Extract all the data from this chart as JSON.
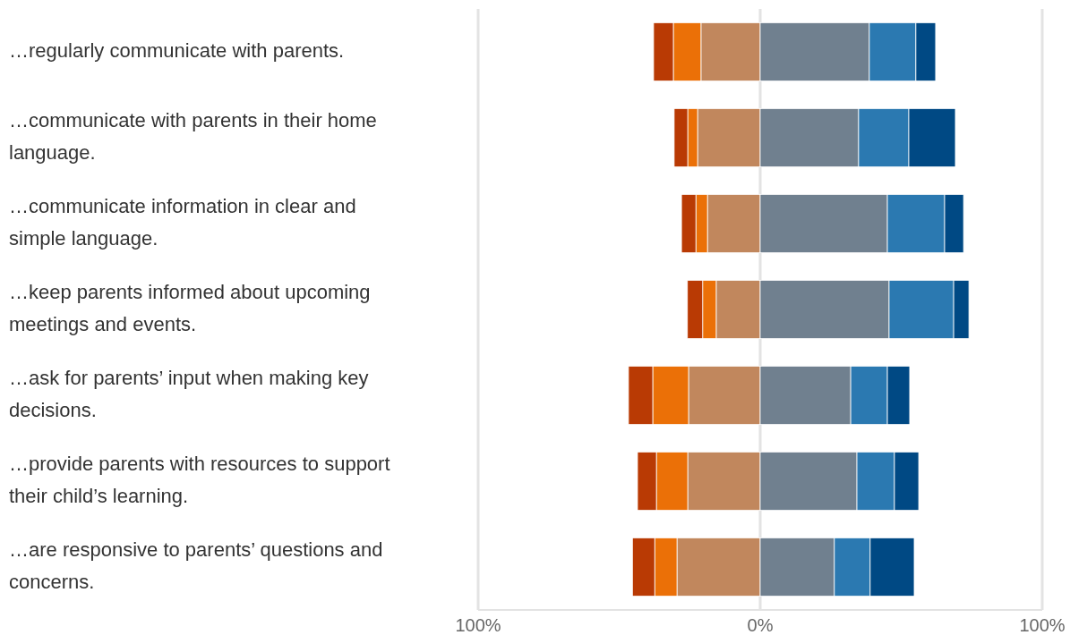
{
  "chart_data": {
    "type": "bar",
    "orientation": "horizontal",
    "stacked": true,
    "grid": "x",
    "categories": [
      "…regularly communicate with parents.",
      "…communicate with parents in their home language.",
      "…communicate information in clear and simple language.",
      "…keep parents informed about upcoming meetings and events.",
      "…ask for parents’ input when making key decisions.",
      "…provide parents with resources to support their child’s learning.",
      "…are responsive to parents’ questions and concerns."
    ],
    "xlim": [
      -100,
      100
    ],
    "xticks": [
      {
        "value": -100,
        "label": "100%"
      },
      {
        "value": 0,
        "label": "0%"
      },
      {
        "value": 100,
        "label": "100%"
      }
    ],
    "series": [
      {
        "color": "#c1875d",
        "values": [
          -21,
          -22.2,
          -18.7,
          -15.6,
          -25.4,
          -25.7,
          -29.5
        ]
      },
      {
        "color": "#eb7007",
        "values": [
          -9.8,
          -3.5,
          -4.1,
          -4.8,
          -12.7,
          -11.1,
          -7.9
        ]
      },
      {
        "color": "#b93a04",
        "values": [
          -7,
          -4.8,
          -5.1,
          -5.4,
          -8.6,
          -6.7,
          -7.9
        ]
      },
      {
        "color": "#70808f",
        "values": [
          38.7,
          34.9,
          45.1,
          45.7,
          32.1,
          34.3,
          26.3
        ]
      },
      {
        "color": "#2b79b1",
        "values": [
          16.5,
          17.8,
          20.3,
          22.9,
          13,
          13.3,
          12.7
        ]
      },
      {
        "color": "#004984",
        "values": [
          7,
          16.5,
          6.7,
          5.4,
          7.9,
          8.6,
          15.6
        ]
      }
    ]
  }
}
